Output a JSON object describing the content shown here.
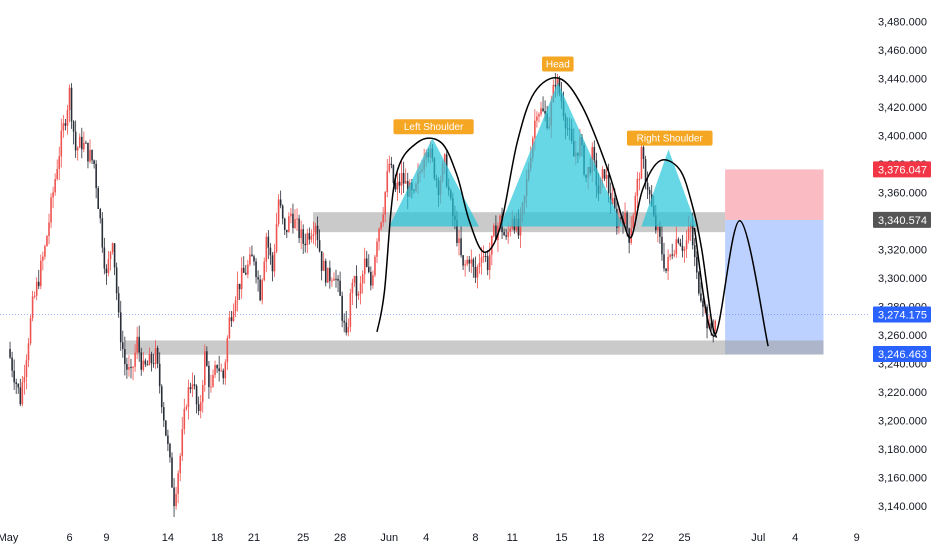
{
  "chart_data": {
    "type": "candlestick",
    "title": "",
    "colors": {
      "up": "#ef5350",
      "down": "#2a2e39",
      "pattern_fill": "#26c6da",
      "zone_fill": "#9e9e9e",
      "stop_zone": "#f8a5ae",
      "target_zone": "#8fb3ff",
      "label_bg": "#f5a623",
      "tag_red": "#f23645",
      "tag_gray": "#555555",
      "tag_blue": "#2962ff"
    },
    "y_axis": {
      "min": 3130,
      "max": 3490,
      "ticks": [
        "3,480.000",
        "3,460.000",
        "3,440.000",
        "3,420.000",
        "3,400.000",
        "3,380.000",
        "3,360.000",
        "3,340.000",
        "3,320.000",
        "3,300.000",
        "3,280.000",
        "3,260.000",
        "3,240.000",
        "3,220.000",
        "3,200.000",
        "3,180.000",
        "3,160.000",
        "3,140.000"
      ]
    },
    "x_axis": {
      "labels": [
        {
          "text": "May",
          "day": 0
        },
        {
          "text": "6",
          "day": 5
        },
        {
          "text": "9",
          "day": 8
        },
        {
          "text": "14",
          "day": 13
        },
        {
          "text": "18",
          "day": 17
        },
        {
          "text": "21",
          "day": 20
        },
        {
          "text": "25",
          "day": 24
        },
        {
          "text": "28",
          "day": 27
        },
        {
          "text": "Jun",
          "day": 31
        },
        {
          "text": "4",
          "day": 34
        },
        {
          "text": "8",
          "day": 38
        },
        {
          "text": "11",
          "day": 41
        },
        {
          "text": "15",
          "day": 45
        },
        {
          "text": "18",
          "day": 48
        },
        {
          "text": "22",
          "day": 52
        },
        {
          "text": "25",
          "day": 55
        },
        {
          "text": "Jul",
          "day": 61
        },
        {
          "text": "4",
          "day": 64
        },
        {
          "text": "9",
          "day": 69
        }
      ]
    },
    "price_path": [
      [
        0,
        3250
      ],
      [
        1,
        3215
      ],
      [
        2,
        3280
      ],
      [
        3,
        3320
      ],
      [
        4,
        3380
      ],
      [
        5,
        3430
      ],
      [
        5.5,
        3390
      ],
      [
        6,
        3395
      ],
      [
        7,
        3380
      ],
      [
        7.5,
        3340
      ],
      [
        8,
        3300
      ],
      [
        8.5,
        3330
      ],
      [
        9,
        3270
      ],
      [
        9.5,
        3240
      ],
      [
        10,
        3230
      ],
      [
        10.5,
        3255
      ],
      [
        11,
        3235
      ],
      [
        12,
        3245
      ],
      [
        12.5,
        3215
      ],
      [
        13,
        3180
      ],
      [
        13.5,
        3145
      ],
      [
        14,
        3175
      ],
      [
        14.5,
        3215
      ],
      [
        15,
        3230
      ],
      [
        15.5,
        3200
      ],
      [
        16,
        3245
      ],
      [
        16.5,
        3220
      ],
      [
        17,
        3240
      ],
      [
        17.5,
        3230
      ],
      [
        18,
        3270
      ],
      [
        18.5,
        3290
      ],
      [
        19,
        3300
      ],
      [
        20,
        3315
      ],
      [
        20.5,
        3290
      ],
      [
        21,
        3330
      ],
      [
        21.5,
        3305
      ],
      [
        22,
        3355
      ],
      [
        22.5,
        3330
      ],
      [
        23,
        3345
      ],
      [
        24,
        3325
      ],
      [
        25,
        3340
      ],
      [
        25.5,
        3310
      ],
      [
        26,
        3300
      ],
      [
        26.5,
        3305
      ],
      [
        27,
        3285
      ],
      [
        27.5,
        3255
      ],
      [
        28,
        3300
      ],
      [
        28.5,
        3285
      ],
      [
        29,
        3310
      ],
      [
        29.5,
        3295
      ],
      [
        30,
        3330
      ],
      [
        30.5,
        3350
      ],
      [
        31,
        3380
      ],
      [
        31.5,
        3360
      ],
      [
        32,
        3370
      ],
      [
        33,
        3355
      ],
      [
        34,
        3395
      ],
      [
        35,
        3365
      ],
      [
        35.5,
        3380
      ],
      [
        36,
        3350
      ],
      [
        36.5,
        3330
      ],
      [
        37,
        3305
      ],
      [
        37.5,
        3315
      ],
      [
        38,
        3300
      ],
      [
        38.5,
        3320
      ],
      [
        39,
        3310
      ],
      [
        39.5,
        3330
      ],
      [
        40,
        3340
      ],
      [
        40.5,
        3325
      ],
      [
        41,
        3345
      ],
      [
        41.5,
        3330
      ],
      [
        42,
        3355
      ],
      [
        42.5,
        3390
      ],
      [
        43,
        3420
      ],
      [
        44,
        3410
      ],
      [
        44.5,
        3440
      ],
      [
        45,
        3425
      ],
      [
        45.5,
        3405
      ],
      [
        46,
        3385
      ],
      [
        46.5,
        3395
      ],
      [
        47,
        3370
      ],
      [
        47.5,
        3385
      ],
      [
        48,
        3360
      ],
      [
        48.5,
        3375
      ],
      [
        49,
        3355
      ],
      [
        49.5,
        3340
      ],
      [
        50,
        3345
      ],
      [
        50.5,
        3330
      ],
      [
        51,
        3355
      ],
      [
        51.5,
        3385
      ],
      [
        52,
        3365
      ],
      [
        52.5,
        3340
      ],
      [
        53,
        3325
      ],
      [
        53.5,
        3305
      ],
      [
        54,
        3320
      ],
      [
        54.5,
        3330
      ],
      [
        55,
        3320
      ],
      [
        55.5,
        3335
      ],
      [
        56,
        3300
      ],
      [
        56.5,
        3285
      ],
      [
        57,
        3262
      ],
      [
        57.5,
        3270
      ]
    ],
    "levels": {
      "neckline_zone": [
        3332,
        3346
      ],
      "support_zone": [
        3246,
        3256
      ],
      "stop_zone": [
        3340.574,
        3376.047
      ],
      "target_zone": [
        3246.463,
        3340.574
      ]
    },
    "pattern_triangles": [
      {
        "points": [
          [
            31,
            3336
          ],
          [
            34.5,
            3398
          ],
          [
            38.3,
            3336
          ]
        ]
      },
      {
        "points": [
          [
            40,
            3336
          ],
          [
            44.7,
            3437
          ],
          [
            50,
            3336
          ]
        ]
      },
      {
        "points": [
          [
            51.5,
            3336
          ],
          [
            53.7,
            3390
          ],
          [
            56,
            3336
          ]
        ]
      }
    ],
    "annotations": [
      {
        "label": "Left Shoulder",
        "day": 34.6,
        "price": 3406
      },
      {
        "label": "Head",
        "day": 44.7,
        "price": 3450
      },
      {
        "label": "Right Shoulder",
        "day": 53.8,
        "price": 3398
      }
    ],
    "projection_path": [
      [
        55.8,
        3335
      ],
      [
        57.4,
        3259
      ],
      [
        59.5,
        3340
      ],
      [
        61.8,
        3252
      ]
    ],
    "curve_path": [
      [
        30,
        3262
      ],
      [
        30.6,
        3290
      ],
      [
        31.5,
        3370
      ],
      [
        33.3,
        3395
      ],
      [
        35.2,
        3395
      ],
      [
        36.5,
        3372
      ],
      [
        37.5,
        3340
      ],
      [
        38.7,
        3318
      ],
      [
        40,
        3335
      ],
      [
        41.4,
        3395
      ],
      [
        42.8,
        3430
      ],
      [
        44.8,
        3440
      ],
      [
        46.7,
        3420
      ],
      [
        48.8,
        3375
      ],
      [
        50,
        3340
      ],
      [
        50.7,
        3329
      ],
      [
        51.6,
        3362
      ],
      [
        53,
        3382
      ],
      [
        54.6,
        3376
      ],
      [
        55.6,
        3352
      ],
      [
        56.4,
        3320
      ],
      [
        57.2,
        3270
      ],
      [
        57.6,
        3258
      ]
    ],
    "price_tags": [
      {
        "text": "3,376.047",
        "price": 3376.047,
        "color": "#f23645"
      },
      {
        "text": "3,340.574",
        "price": 3340.574,
        "color": "#555555"
      },
      {
        "text": "3,274.175",
        "price": 3274.175,
        "color": "#2962ff"
      },
      {
        "text": "3,246.463",
        "price": 3246.463,
        "color": "#2962ff"
      }
    ],
    "current_price": 3274.175
  }
}
